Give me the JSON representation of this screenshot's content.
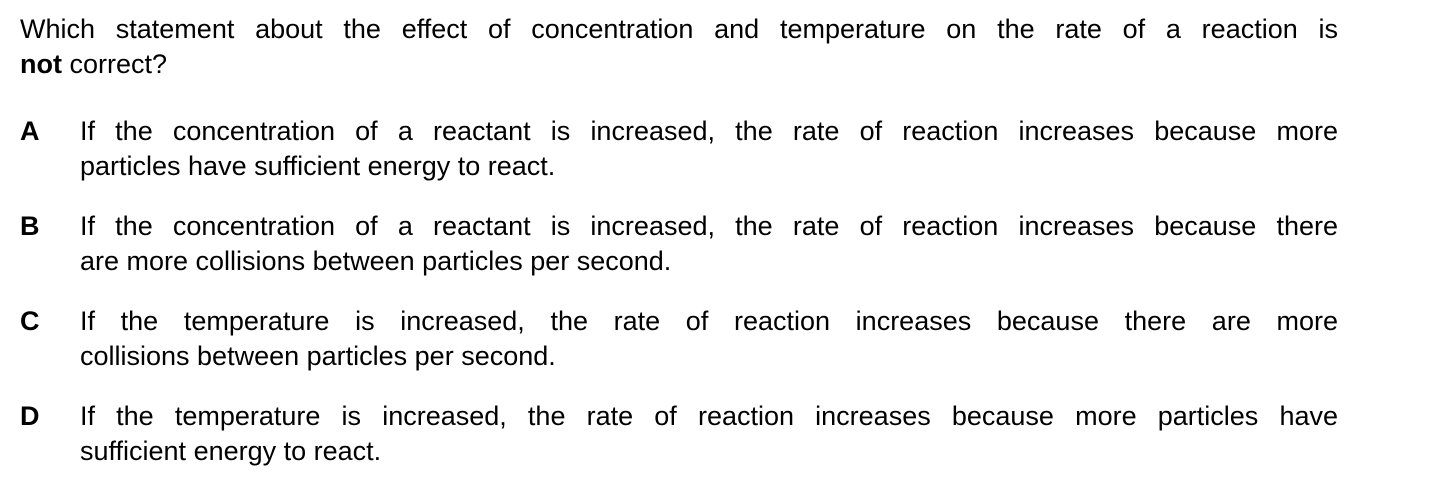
{
  "question": {
    "line1": "Which statement about the effect of concentration and temperature on the rate of a reaction is",
    "emphasis": "not",
    "line2_rest": " correct?"
  },
  "options": [
    {
      "letter": "A",
      "line1": "If the concentration of a reactant is increased, the rate of reaction increases because more",
      "line2": "particles have sufficient energy to react."
    },
    {
      "letter": "B",
      "line1": "If the concentration of a reactant is increased, the rate of reaction increases because there",
      "line2": "are more collisions between particles per second."
    },
    {
      "letter": "C",
      "line1": "If the temperature is increased, the rate of reaction increases because there are more",
      "line2": "collisions between particles per second."
    },
    {
      "letter": "D",
      "line1": "If the temperature is increased, the rate of reaction increases because more particles have",
      "line2": "sufficient energy to react."
    }
  ]
}
